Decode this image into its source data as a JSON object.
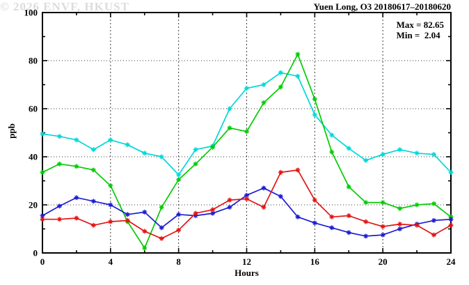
{
  "title": "Yuen Long, O3 20180617–20180620",
  "annotation": {
    "max_line": "Max = 82.65",
    "min_line": "Min =  2.04"
  },
  "watermark": "© 2026 ENVF, HKUST",
  "chart_data": {
    "type": "line",
    "title": "Yuen Long, O3 20180617–20180620",
    "xlabel": "Hours",
    "ylabel": "ppb",
    "xlim": [
      0,
      24
    ],
    "ylim": [
      0,
      100
    ],
    "x_major_ticks": [
      0,
      4,
      8,
      12,
      16,
      20,
      24
    ],
    "x_minor_ticks": [
      2,
      6,
      10,
      14,
      18,
      22
    ],
    "y_major_ticks": [
      0,
      20,
      40,
      60,
      80,
      100
    ],
    "y_minor_ticks": [
      10,
      30,
      50,
      70,
      90
    ],
    "grid": {
      "x_lines": [
        4,
        8,
        12,
        16,
        20
      ],
      "y_lines": [
        20,
        40,
        60,
        80
      ]
    },
    "legend_position": "none",
    "marker": "asterisk",
    "x": [
      0,
      1,
      2,
      3,
      4,
      5,
      6,
      7,
      8,
      9,
      10,
      11,
      12,
      13,
      14,
      15,
      16,
      17,
      18,
      19,
      20,
      21,
      22,
      23,
      24
    ],
    "series": [
      {
        "name": "series-cyan",
        "color": "#00d8d8",
        "values": [
          49.5,
          48.5,
          47,
          43,
          47,
          45,
          41.5,
          40,
          32.5,
          43,
          44.5,
          60,
          68.5,
          70,
          75,
          73.5,
          57.5,
          49,
          43.5,
          38.5,
          41,
          43,
          41.5,
          41,
          33.5
        ]
      },
      {
        "name": "series-green",
        "color": "#00cc00",
        "values": [
          33.5,
          37,
          36,
          34.5,
          28,
          13,
          2.04,
          19,
          30.5,
          37,
          44,
          52,
          50.5,
          62.5,
          69,
          82.65,
          64,
          42,
          27.5,
          21,
          21,
          18.5,
          20,
          20.5,
          15
        ]
      },
      {
        "name": "series-blue",
        "color": "#1c1cd2",
        "values": [
          15.5,
          19.5,
          23,
          21.5,
          20,
          16,
          17,
          10.5,
          16,
          15.5,
          16.5,
          19,
          24,
          27,
          23.5,
          15,
          12.5,
          10.5,
          8.5,
          7,
          7.5,
          10,
          12,
          13.5,
          14
        ]
      },
      {
        "name": "series-red",
        "color": "#e41414",
        "values": [
          14,
          14,
          14.5,
          11.5,
          13,
          13.5,
          9,
          6,
          9.5,
          16.5,
          18,
          22,
          22.5,
          19,
          33.5,
          34.5,
          22,
          15,
          15.5,
          13,
          11,
          12,
          11.5,
          7.5,
          11.5
        ]
      }
    ],
    "annotations": {
      "max": 82.65,
      "min": 2.04
    }
  }
}
